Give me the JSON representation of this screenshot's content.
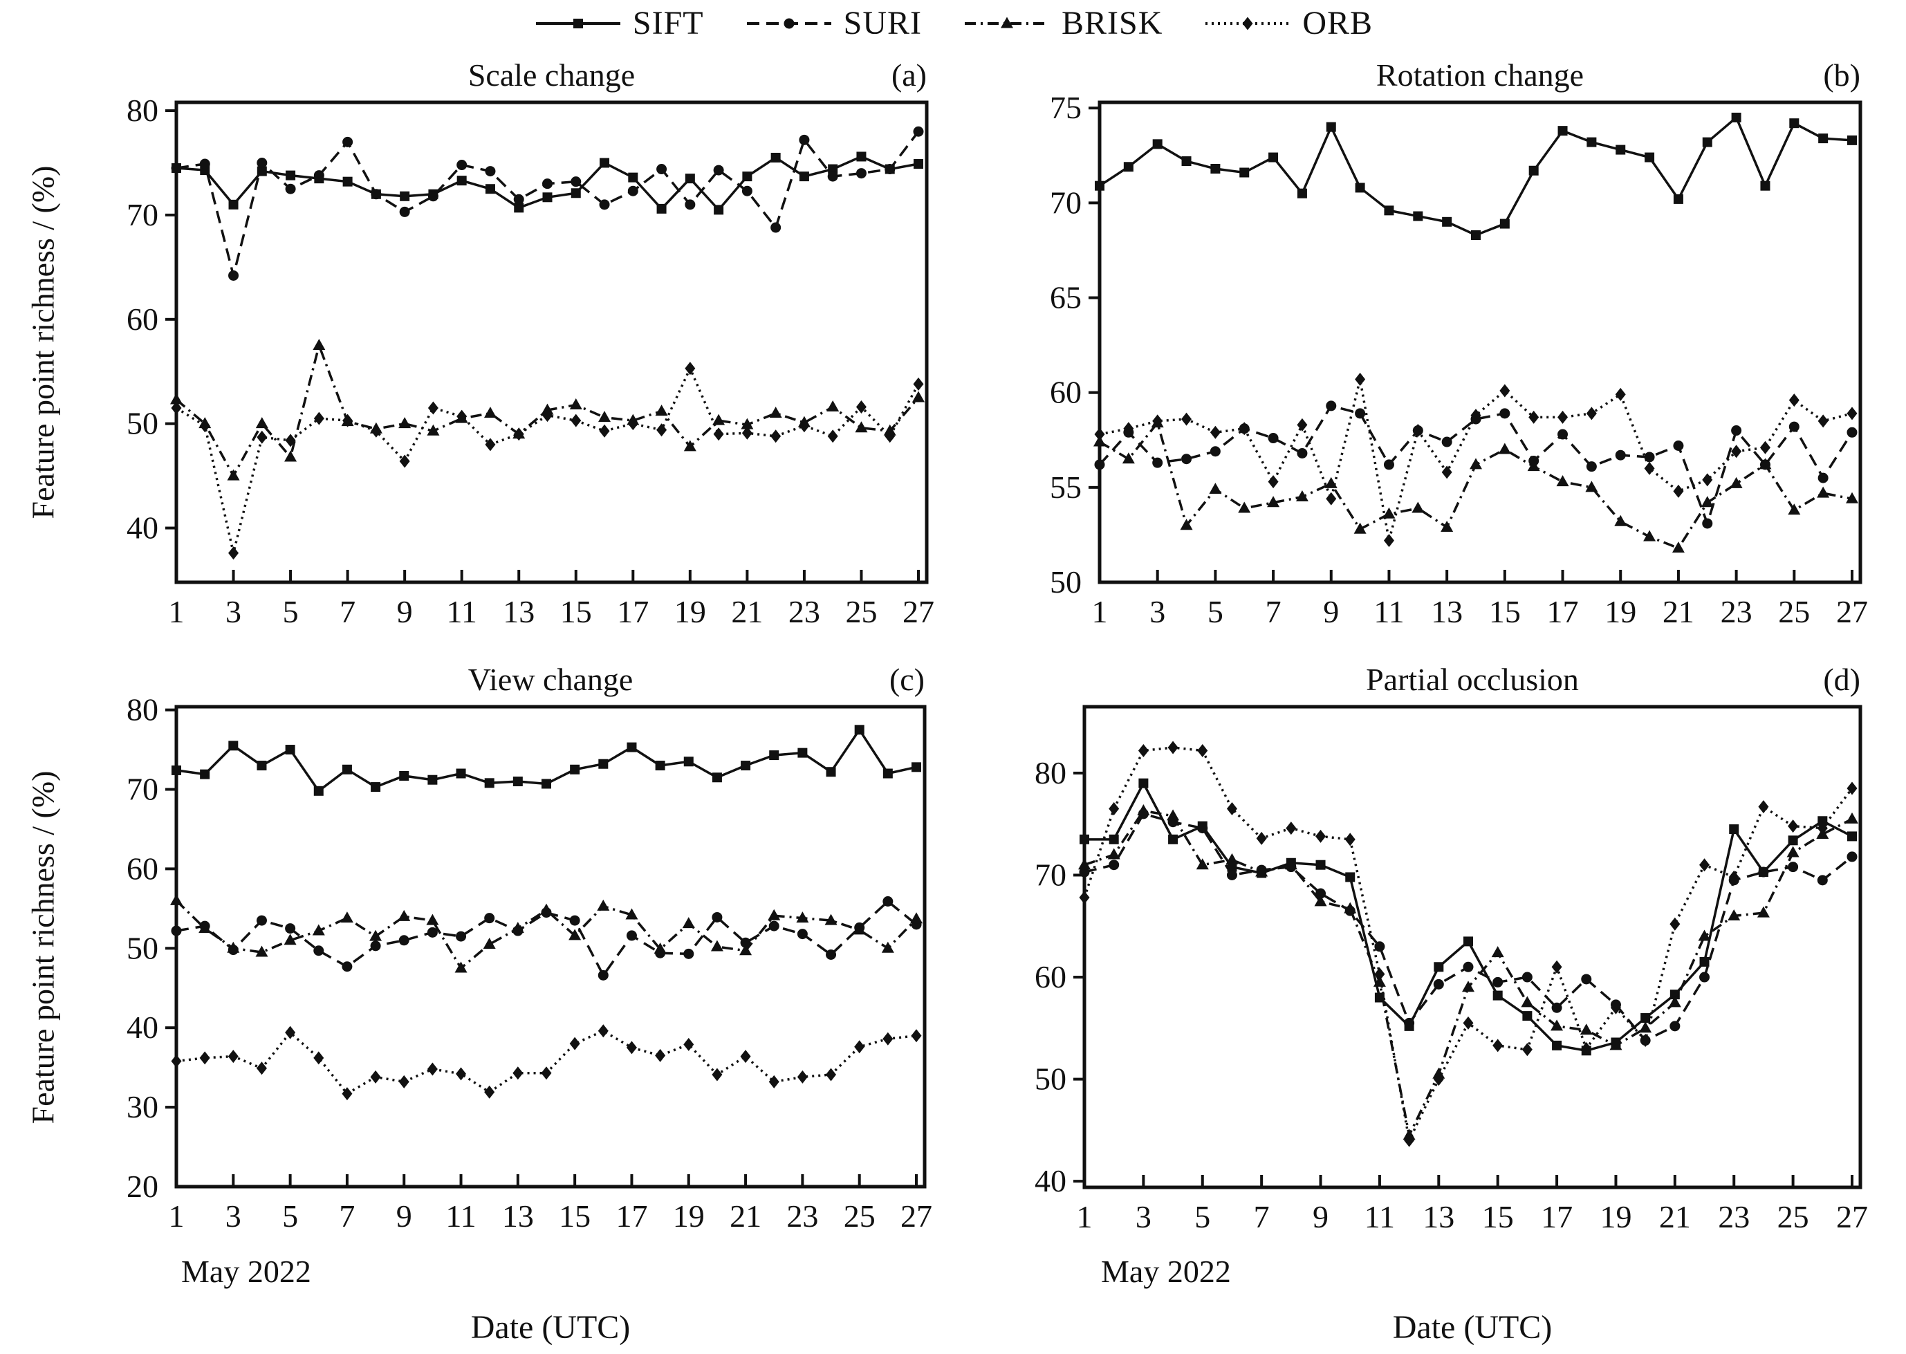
{
  "legend": {
    "items": [
      {
        "label": "SIFT",
        "marker": "square",
        "dash": "solid"
      },
      {
        "label": "SURI",
        "marker": "circle",
        "dash": "dashed"
      },
      {
        "label": "BRISK",
        "marker": "triangle",
        "dash": "dashdot"
      },
      {
        "label": "ORB",
        "marker": "diamond",
        "dash": "dotted"
      }
    ]
  },
  "axes": {
    "ylabel": "Feature point richness / (%)",
    "xlabel": "Date (UTC)",
    "month_label": "May 2022"
  },
  "line_color": "#111111",
  "chart_data": [
    {
      "type": "line",
      "title": "Scale change",
      "panel_label": "(a)",
      "xlabel": "Date (UTC)",
      "x_ticks": [
        1,
        3,
        5,
        7,
        9,
        11,
        13,
        15,
        17,
        19,
        21,
        23,
        25,
        27
      ],
      "x_range": [
        1,
        27
      ],
      "ylim": [
        34.8,
        80.8
      ],
      "yticks": [
        40,
        50,
        60,
        70,
        80
      ],
      "grid": false,
      "series": [
        {
          "name": "SIFT",
          "marker": "square",
          "dash": "solid",
          "values": [
            74.5,
            74.3,
            71.0,
            74.2,
            73.8,
            73.5,
            73.2,
            72.0,
            71.8,
            72.0,
            73.3,
            72.5,
            70.7,
            71.7,
            72.1,
            75.0,
            73.6,
            70.6,
            73.5,
            70.5,
            73.7,
            75.5,
            73.7,
            74.4,
            75.6,
            74.4,
            74.9
          ]
        },
        {
          "name": "SURI",
          "marker": "circle",
          "dash": "dashed",
          "values": [
            74.5,
            74.9,
            64.2,
            75.0,
            72.5,
            73.8,
            77.0,
            72.0,
            70.3,
            71.8,
            74.8,
            74.2,
            71.5,
            73.0,
            73.2,
            71.0,
            72.3,
            74.4,
            71.0,
            74.3,
            72.3,
            68.8,
            77.2,
            73.7,
            74.0,
            74.4,
            78.0
          ]
        },
        {
          "name": "BRISK",
          "marker": "triangle",
          "dash": "dashdot",
          "values": [
            52.3,
            50.0,
            45.0,
            50.0,
            46.8,
            57.5,
            50.2,
            49.5,
            50.0,
            49.3,
            50.5,
            51.0,
            49.0,
            51.3,
            51.8,
            50.6,
            50.3,
            51.2,
            47.8,
            50.3,
            49.9,
            51.0,
            50.1,
            51.6,
            49.6,
            49.3,
            52.5
          ]
        },
        {
          "name": "ORB",
          "marker": "diamond",
          "dash": "dotted",
          "values": [
            51.5,
            49.8,
            37.6,
            48.7,
            48.4,
            50.5,
            50.3,
            49.3,
            46.4,
            51.5,
            50.7,
            48.0,
            49.0,
            50.8,
            50.3,
            49.3,
            50.0,
            49.4,
            55.3,
            49.0,
            49.1,
            48.8,
            49.8,
            48.8,
            51.6,
            48.8,
            53.8
          ]
        }
      ]
    },
    {
      "type": "line",
      "title": "Rotation change",
      "panel_label": "(b)",
      "xlabel": "Date (UTC)",
      "x_ticks": [
        1,
        3,
        5,
        7,
        9,
        11,
        13,
        15,
        17,
        19,
        21,
        23,
        25,
        27
      ],
      "x_range": [
        1,
        27
      ],
      "ylim": [
        50,
        75.3
      ],
      "yticks": [
        50,
        55,
        60,
        65,
        70,
        75
      ],
      "grid": false,
      "series": [
        {
          "name": "SIFT",
          "marker": "square",
          "dash": "solid",
          "values": [
            70.9,
            71.9,
            73.1,
            72.2,
            71.8,
            71.6,
            72.4,
            70.5,
            74.0,
            70.8,
            69.6,
            69.3,
            69.0,
            68.3,
            68.9,
            71.7,
            73.8,
            73.2,
            72.8,
            72.4,
            70.2,
            73.2,
            74.5,
            70.9,
            74.2,
            73.4,
            73.3
          ]
        },
        {
          "name": "SURI",
          "marker": "circle",
          "dash": "dashed",
          "values": [
            56.2,
            57.9,
            56.3,
            56.5,
            56.9,
            58.1,
            57.6,
            56.8,
            59.3,
            58.9,
            56.2,
            58.0,
            57.4,
            58.6,
            58.9,
            56.4,
            57.8,
            56.1,
            56.7,
            56.6,
            57.2,
            53.1,
            58.0,
            56.2,
            58.2,
            55.5,
            57.9
          ]
        },
        {
          "name": "BRISK",
          "marker": "triangle",
          "dash": "dashdot",
          "values": [
            57.4,
            56.5,
            58.4,
            53.0,
            54.9,
            53.9,
            54.2,
            54.5,
            55.2,
            52.8,
            53.6,
            53.9,
            52.9,
            56.2,
            57.0,
            56.1,
            55.3,
            55.0,
            53.2,
            52.4,
            51.8,
            54.2,
            55.2,
            56.2,
            53.8,
            54.7,
            54.4
          ]
        },
        {
          "name": "ORB",
          "marker": "diamond",
          "dash": "dotted",
          "values": [
            57.8,
            58.1,
            58.5,
            58.6,
            57.9,
            58.1,
            55.3,
            58.3,
            54.4,
            60.7,
            52.2,
            58.0,
            55.8,
            58.8,
            60.1,
            58.7,
            58.7,
            58.9,
            59.9,
            56.0,
            54.8,
            55.4,
            56.9,
            57.1,
            59.6,
            58.5,
            58.9
          ]
        }
      ]
    },
    {
      "type": "line",
      "title": "View change",
      "panel_label": "(c)",
      "xlabel": "Date (UTC)",
      "x_ticks": [
        1,
        3,
        5,
        7,
        9,
        11,
        13,
        15,
        17,
        19,
        21,
        23,
        25,
        27
      ],
      "x_range": [
        1,
        27
      ],
      "ylim": [
        20,
        80.4
      ],
      "yticks": [
        20,
        30,
        40,
        50,
        60,
        70,
        80
      ],
      "grid": false,
      "series": [
        {
          "name": "SIFT",
          "marker": "square",
          "dash": "solid",
          "values": [
            72.4,
            71.9,
            75.5,
            73.0,
            75.0,
            69.8,
            72.5,
            70.3,
            71.7,
            71.2,
            72.0,
            70.8,
            71.0,
            70.7,
            72.5,
            73.2,
            75.3,
            73.0,
            73.5,
            71.5,
            73.0,
            74.3,
            74.6,
            72.2,
            77.5,
            72.0,
            72.8
          ]
        },
        {
          "name": "SURI",
          "marker": "circle",
          "dash": "dashed",
          "values": [
            52.2,
            52.8,
            49.8,
            53.5,
            52.5,
            49.7,
            47.7,
            50.3,
            51.0,
            52.0,
            51.5,
            53.8,
            52.2,
            54.5,
            53.5,
            46.6,
            51.6,
            49.4,
            49.3,
            53.9,
            50.7,
            52.8,
            51.8,
            49.2,
            52.6,
            55.9,
            53.0
          ]
        },
        {
          "name": "BRISK",
          "marker": "triangle",
          "dash": "dashdot",
          "values": [
            56.0,
            52.5,
            50.0,
            49.5,
            51.0,
            52.2,
            53.8,
            51.5,
            54.0,
            53.5,
            47.5,
            50.5,
            52.5,
            54.8,
            51.6,
            55.3,
            54.2,
            49.9,
            53.1,
            50.2,
            49.7,
            54.1,
            53.8,
            53.5,
            52.3,
            50.0,
            53.7
          ]
        },
        {
          "name": "ORB",
          "marker": "diamond",
          "dash": "dotted",
          "values": [
            35.8,
            36.2,
            36.4,
            34.9,
            39.4,
            36.2,
            31.7,
            33.8,
            33.2,
            34.8,
            34.2,
            31.9,
            34.3,
            34.3,
            38.0,
            39.6,
            37.5,
            36.5,
            37.9,
            34.1,
            36.4,
            33.2,
            33.8,
            34.1,
            37.6,
            38.6,
            39.0
          ]
        }
      ]
    },
    {
      "type": "line",
      "title": "Partial occlusion",
      "panel_label": "(d)",
      "xlabel": "Date (UTC)",
      "x_ticks": [
        1,
        3,
        5,
        7,
        9,
        11,
        13,
        15,
        17,
        19,
        21,
        23,
        25,
        27
      ],
      "x_range": [
        1,
        27
      ],
      "ylim": [
        39.4,
        86.5
      ],
      "yticks": [
        40,
        50,
        60,
        70,
        80
      ],
      "grid": false,
      "series": [
        {
          "name": "SIFT",
          "marker": "square",
          "dash": "solid",
          "values": [
            73.5,
            73.5,
            79.0,
            73.5,
            74.8,
            70.8,
            70.2,
            71.2,
            71.0,
            69.8,
            58.0,
            55.2,
            61.0,
            63.5,
            58.2,
            56.2,
            53.3,
            52.8,
            53.6,
            56.0,
            58.3,
            61.5,
            74.5,
            70.3,
            73.4,
            75.3,
            73.8
          ]
        },
        {
          "name": "SURI",
          "marker": "circle",
          "dash": "dashed",
          "values": [
            70.3,
            71.0,
            76.0,
            75.2,
            74.6,
            70.0,
            70.5,
            70.8,
            68.2,
            66.5,
            63.0,
            55.5,
            59.3,
            61.0,
            59.5,
            60.0,
            57.0,
            59.8,
            57.3,
            53.8,
            55.2,
            60.0,
            69.5,
            70.3,
            70.8,
            69.5,
            71.8
          ]
        },
        {
          "name": "BRISK",
          "marker": "triangle",
          "dash": "dashdot",
          "values": [
            71.0,
            72.0,
            76.3,
            75.8,
            71.0,
            71.5,
            70.3,
            71.0,
            67.4,
            66.7,
            59.5,
            44.5,
            50.5,
            59.0,
            62.4,
            57.5,
            55.2,
            54.8,
            53.3,
            55.0,
            57.5,
            64.0,
            66.0,
            66.3,
            72.2,
            74.0,
            75.5
          ]
        },
        {
          "name": "ORB",
          "marker": "diamond",
          "dash": "dotted",
          "values": [
            67.8,
            76.5,
            82.2,
            82.5,
            82.2,
            76.5,
            73.6,
            74.6,
            73.8,
            73.5,
            60.3,
            44.0,
            50.0,
            55.5,
            53.3,
            52.9,
            61.0,
            53.0,
            57.0,
            53.8,
            65.2,
            71.0,
            69.8,
            76.7,
            74.8,
            74.6,
            78.5
          ]
        }
      ]
    }
  ]
}
